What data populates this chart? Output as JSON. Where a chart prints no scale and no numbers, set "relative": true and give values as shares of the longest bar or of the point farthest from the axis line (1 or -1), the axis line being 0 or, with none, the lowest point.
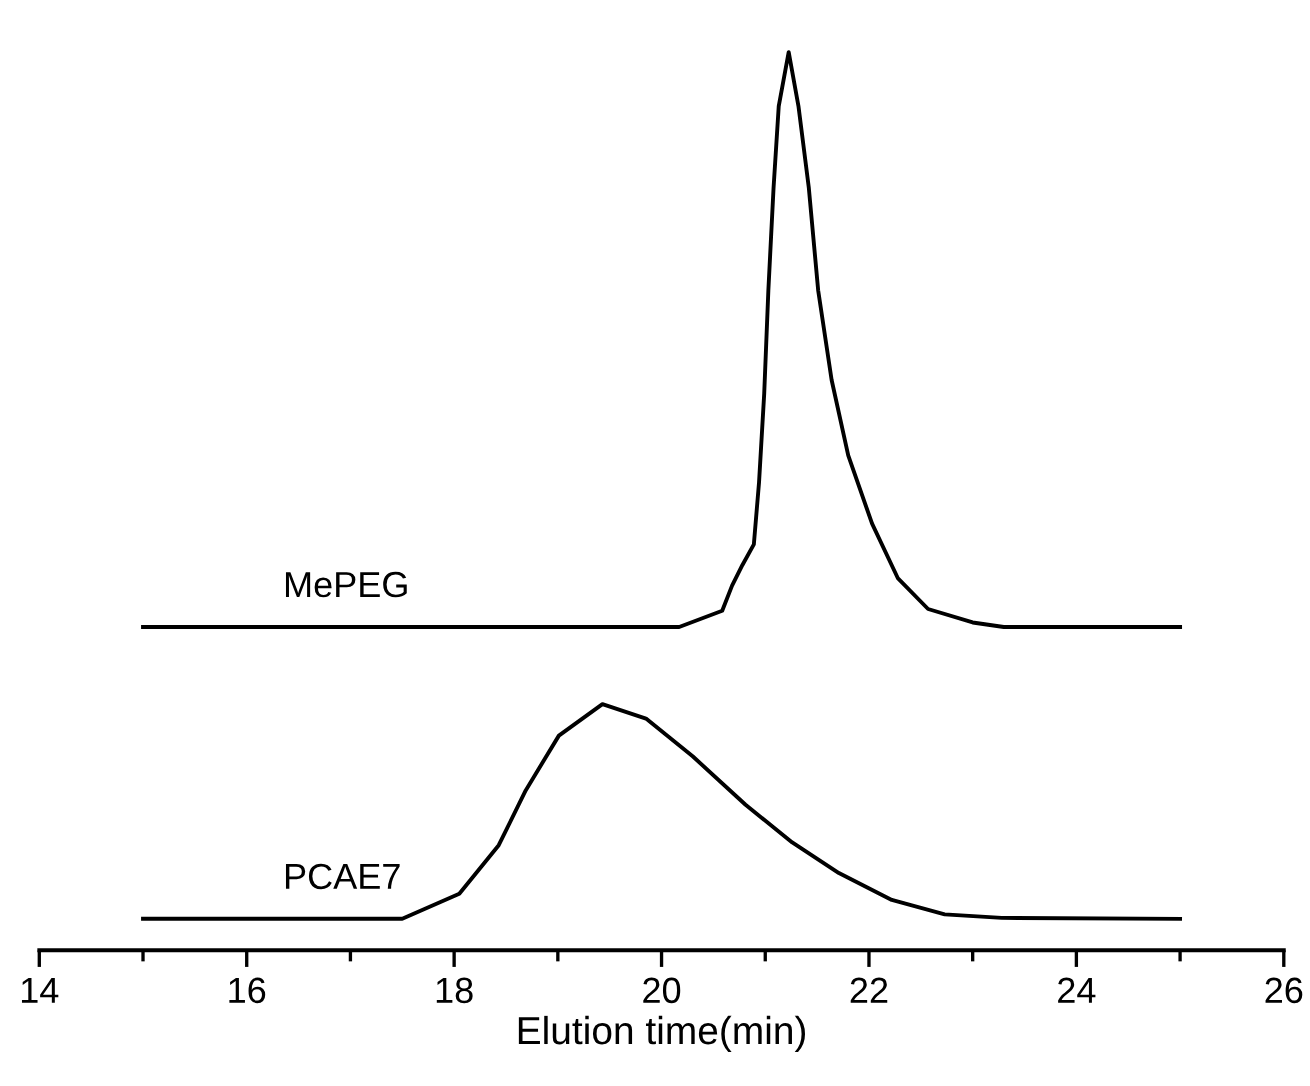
{
  "chart_data": {
    "type": "line",
    "relative": true,
    "xlabel": "Elution time(min)",
    "xlim": [
      14,
      26
    ],
    "xticks": [
      14,
      16,
      18,
      20,
      22,
      24,
      26
    ],
    "grid": false,
    "legend": false,
    "marker": "none",
    "line_style": "solid",
    "series": [
      {
        "name": "MePEG",
        "color": "#000000",
        "x": [
          15,
          20.17,
          20.585,
          20.68,
          20.78,
          20.89,
          20.94,
          20.99,
          21.03,
          21.08,
          21.13,
          21.226,
          21.32,
          21.42,
          21.51,
          21.64,
          21.8,
          22.03,
          22.28,
          22.57,
          23.0,
          23.3,
          25
        ],
        "values": [
          0.36,
          0.36,
          0.378,
          0.406,
          0.429,
          0.452,
          0.521,
          0.62,
          0.735,
          0.849,
          0.94,
          1.0,
          0.94,
          0.849,
          0.735,
          0.635,
          0.551,
          0.475,
          0.414,
          0.38,
          0.365,
          0.36,
          0.36
        ]
      },
      {
        "name": "PCAE7",
        "color": "#000000",
        "x": [
          15,
          17.5,
          18.05,
          18.43,
          18.69,
          19.01,
          19.43,
          19.85,
          20.3,
          20.81,
          21.26,
          21.71,
          22.22,
          22.73,
          23.28,
          25
        ],
        "values": [
          0.035,
          0.035,
          0.063,
          0.117,
          0.178,
          0.239,
          0.274,
          0.258,
          0.216,
          0.162,
          0.12,
          0.086,
          0.056,
          0.04,
          0.036,
          0.035
        ]
      }
    ]
  }
}
